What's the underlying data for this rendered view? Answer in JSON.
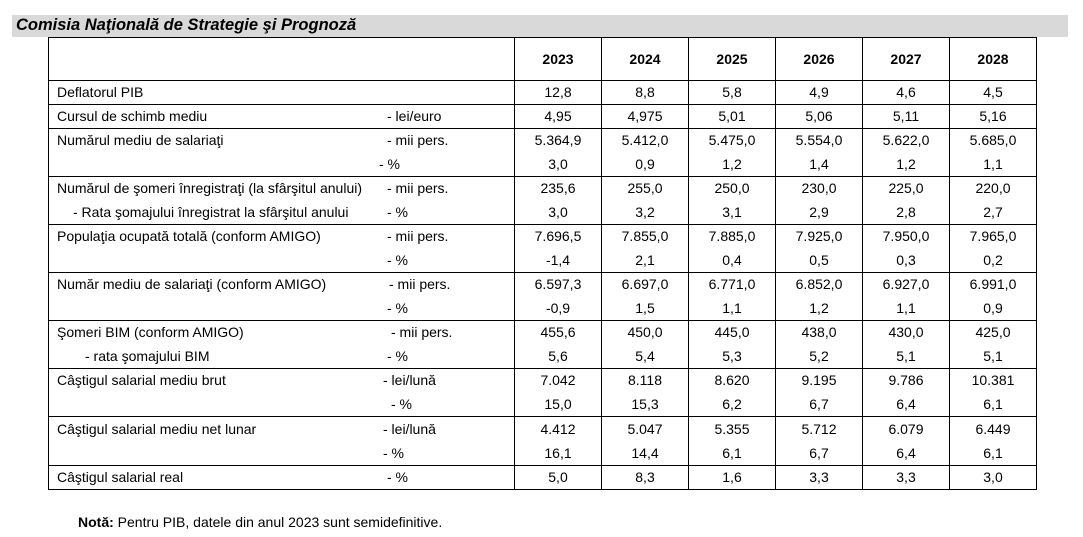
{
  "title": "Comisia Naţională de Strategie şi Prognoză",
  "years": [
    "2023",
    "2024",
    "2025",
    "2026",
    "2027",
    "2028"
  ],
  "rows": [
    {
      "lines": [
        {
          "label": "Deflatorul PIB",
          "unit": "",
          "values": [
            "12,8",
            "8,8",
            "5,8",
            "4,9",
            "4,6",
            "4,5"
          ]
        }
      ]
    },
    {
      "lines": [
        {
          "label": "Cursul de schimb mediu",
          "unit": "- lei/euro",
          "values": [
            "4,95",
            "4,975",
            "5,01",
            "5,06",
            "5,11",
            "5,16"
          ]
        }
      ]
    },
    {
      "lines": [
        {
          "label": "Numărul mediu de salariaţi",
          "unit": "- mii pers.",
          "values": [
            "5.364,9",
            "5.412,0",
            "5.475,0",
            "5.554,0",
            "5.622,0",
            "5.685,0"
          ]
        },
        {
          "label": "",
          "unit": "- %",
          "values": [
            "3,0",
            "0,9",
            "1,2",
            "1,4",
            "1,2",
            "1,1"
          ]
        }
      ]
    },
    {
      "lines": [
        {
          "label": "Numărul de şomeri înregistraţi (la sfârşitul anului)",
          "unit": "- mii pers.",
          "values": [
            "235,6",
            "255,0",
            "250,0",
            "230,0",
            "225,0",
            "220,0"
          ]
        },
        {
          "label": "- Rata şomajului înregistrat la sfârşitul anului",
          "unit": "- %",
          "values": [
            "3,0",
            "3,2",
            "3,1",
            "2,9",
            "2,8",
            "2,7"
          ]
        }
      ]
    },
    {
      "lines": [
        {
          "label": "Populaţia ocupată totală  (conform  AMIGO)",
          "unit": "- mii pers.",
          "values": [
            "7.696,5",
            "7.855,0",
            "7.885,0",
            "7.925,0",
            "7.950,0",
            "7.965,0"
          ]
        },
        {
          "label": "",
          "unit": "- %",
          "values": [
            "-1,4",
            "2,1",
            "0,4",
            "0,5",
            "0,3",
            "0,2"
          ]
        }
      ]
    },
    {
      "lines": [
        {
          "label": "Număr mediu de salariaţi (conform  AMIGO)",
          "unit": "- mii pers.",
          "values": [
            "6.597,3",
            "6.697,0",
            "6.771,0",
            "6.852,0",
            "6.927,0",
            "6.991,0"
          ]
        },
        {
          "label": "",
          "unit": "- %",
          "values": [
            "-0,9",
            "1,5",
            "1,1",
            "1,2",
            "1,1",
            "0,9"
          ]
        }
      ]
    },
    {
      "lines": [
        {
          "label": "Şomeri BIM (conform  AMIGO)",
          "unit": "- mii pers.",
          "values": [
            "455,6",
            "450,0",
            "445,0",
            "438,0",
            "430,0",
            "425,0"
          ]
        },
        {
          "label": "- rata şomajului BIM",
          "unit": "- %",
          "values": [
            "5,6",
            "5,4",
            "5,3",
            "5,2",
            "5,1",
            "5,1"
          ]
        }
      ]
    },
    {
      "lines": [
        {
          "label": "Câştigul salarial mediu brut",
          "unit": "- lei/lună",
          "values": [
            "7.042",
            "8.118",
            "8.620",
            "9.195",
            "9.786",
            "10.381"
          ]
        },
        {
          "label": "",
          "unit": "- %",
          "values": [
            "15,0",
            "15,3",
            "6,2",
            "6,7",
            "6,4",
            "6,1"
          ]
        }
      ]
    },
    {
      "lines": [
        {
          "label": "Câştigul salarial mediu net lunar",
          "unit": "- lei/lună",
          "values": [
            "4.412",
            "5.047",
            "5.355",
            "5.712",
            "6.079",
            "6.449"
          ]
        },
        {
          "label": "",
          "unit": "- %",
          "values": [
            "16,1",
            "14,4",
            "6,1",
            "6,7",
            "6,4",
            "6,1"
          ]
        }
      ]
    },
    {
      "lines": [
        {
          "label": "Câştigul salarial real",
          "unit": "- %",
          "values": [
            "5,0",
            "8,3",
            "1,6",
            "3,3",
            "3,3",
            "3,0"
          ]
        }
      ]
    }
  ],
  "note": {
    "bold": "Notă:",
    "text": " Pentru PIB, datele din anul 2023 sunt semidefinitive."
  }
}
